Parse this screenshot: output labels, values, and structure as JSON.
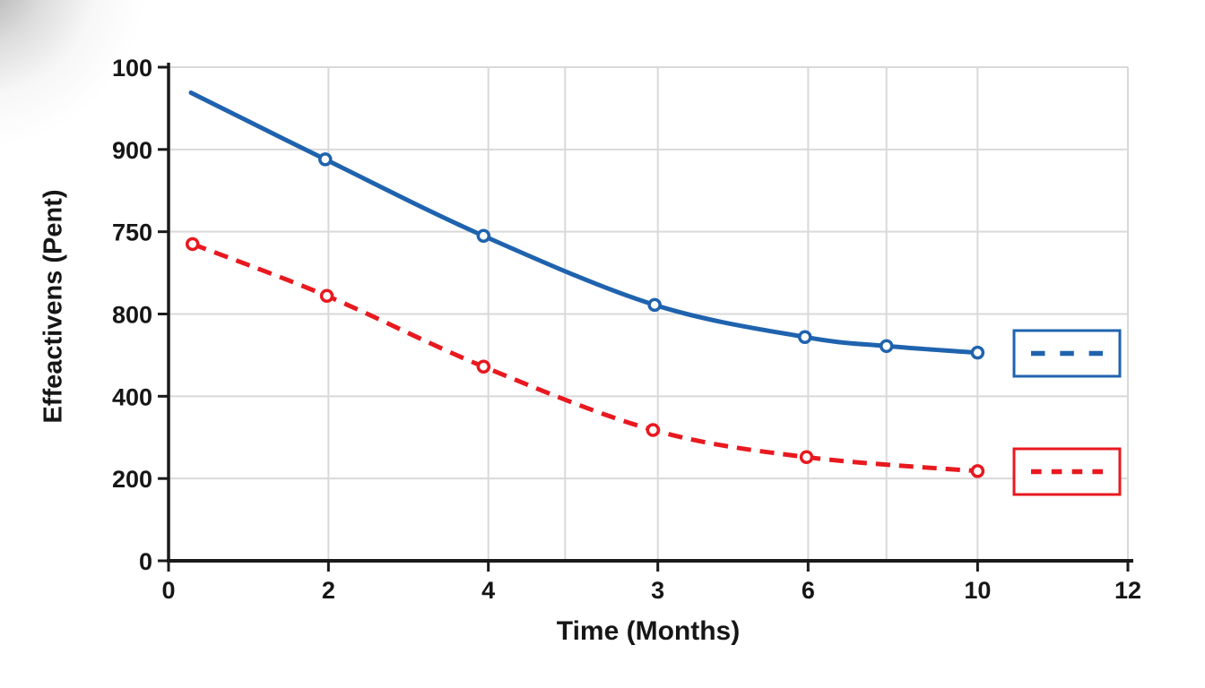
{
  "chart_data": {
    "type": "line",
    "title": "",
    "xlabel": "Time (Months)",
    "ylabel": "Effeactivens (Pent)",
    "x_tick_labels": [
      "0",
      "2",
      "4",
      "3",
      "6",
      "10",
      "12"
    ],
    "x_tick_units": [
      0,
      1,
      2,
      3.06,
      4,
      5.06,
      6
    ],
    "y_tick_labels_bottom_to_top": [
      "0",
      "200",
      "400",
      "800",
      "750",
      "900",
      "100"
    ],
    "x_gridline_units": [
      1,
      2,
      2.48,
      3.06,
      4,
      4.49,
      5.06,
      6
    ],
    "grid": true,
    "units_note": "x in x-axis tick intervals 0-6 (ticks as labeled above); y in horizontal gridline intervals 0-6 bottom-to-top (gridlines as labeled above)",
    "axis_color": "#1a1a1a",
    "gridline_color": "#d9d9d9",
    "text_color": "#161616",
    "series": [
      {
        "name": "blue-solid",
        "color": "#1f63ae",
        "line_style": "solid",
        "points": [
          {
            "x": 0.14,
            "y": 5.69,
            "marker": false
          },
          {
            "x": 0.98,
            "y": 4.88,
            "marker": true
          },
          {
            "x": 1.97,
            "y": 3.95,
            "marker": true
          },
          {
            "x": 3.04,
            "y": 3.11,
            "marker": true
          },
          {
            "x": 3.98,
            "y": 2.72,
            "marker": true
          },
          {
            "x": 4.49,
            "y": 2.61,
            "marker": true
          },
          {
            "x": 5.06,
            "y": 2.53,
            "marker": true
          }
        ]
      },
      {
        "name": "red-dashed",
        "color": "#e8191f",
        "line_style": "dashed",
        "points": [
          {
            "x": 0.15,
            "y": 3.85,
            "marker": true
          },
          {
            "x": 0.99,
            "y": 3.22,
            "marker": true
          },
          {
            "x": 1.97,
            "y": 2.36,
            "marker": true
          },
          {
            "x": 3.03,
            "y": 1.59,
            "marker": true
          },
          {
            "x": 3.99,
            "y": 1.26,
            "marker": true
          },
          {
            "x": 5.06,
            "y": 1.09,
            "marker": true
          }
        ]
      }
    ],
    "legend": {
      "position": "right-inside",
      "items": [
        {
          "name": "blue-series-swatch",
          "color": "#1f63ae",
          "line_style": "dashed",
          "dash_count": 3
        },
        {
          "name": "red-series-swatch",
          "color": "#e8191f",
          "line_style": "dashed",
          "dash_count": 4
        }
      ]
    }
  }
}
